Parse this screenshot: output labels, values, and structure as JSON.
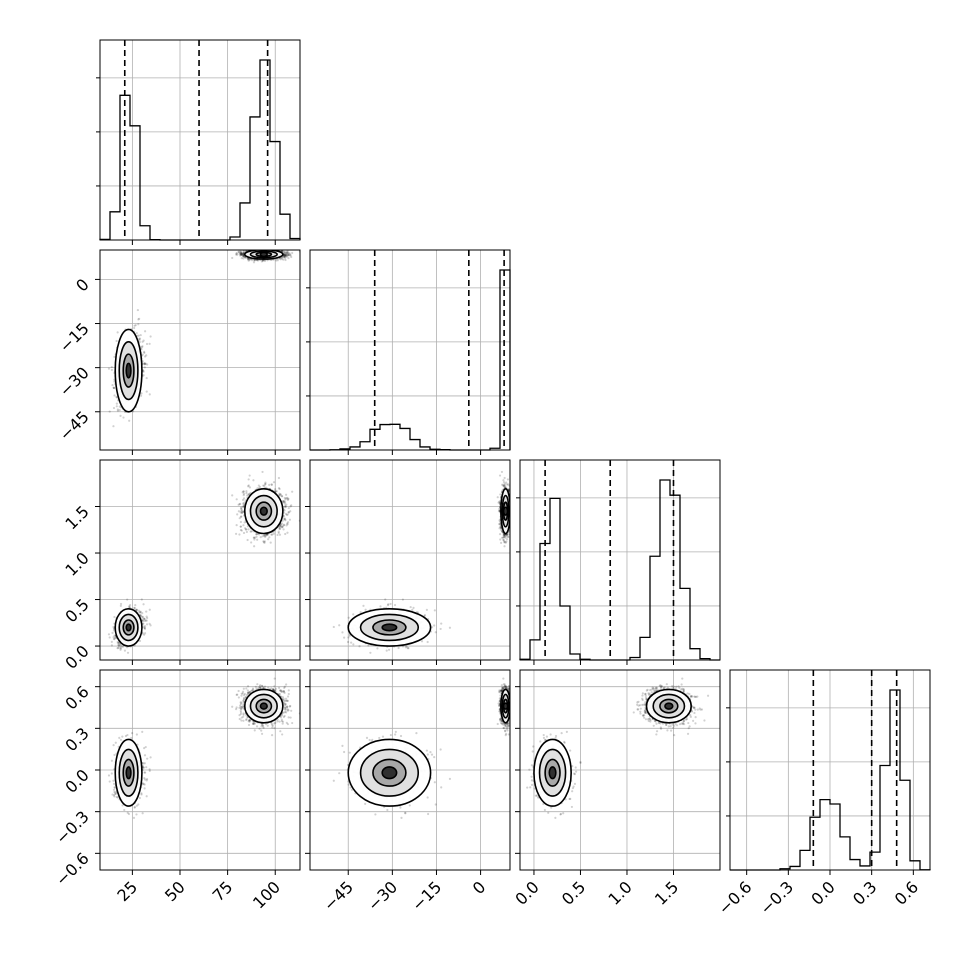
{
  "chart_data": {
    "type": "corner",
    "parameters": [
      {
        "id": "p0",
        "range": [
          8,
          113
        ],
        "ticks": [
          25,
          50,
          75,
          100
        ],
        "tick_labels": [
          "25",
          "50",
          "75",
          "100"
        ],
        "quantile_lines": [
          21,
          60,
          96
        ],
        "modes": [
          {
            "mu": 23,
            "sigma": 3.5,
            "w": 0.4
          },
          {
            "mu": 94,
            "sigma": 5,
            "w": 0.6
          }
        ]
      },
      {
        "id": "p1",
        "range": [
          -58,
          10
        ],
        "ticks": [
          -45,
          -30,
          -15,
          0
        ],
        "tick_labels": [
          "−45",
          "−30",
          "−15",
          "0"
        ],
        "quantile_lines": [
          -36,
          -4,
          8
        ],
        "modes": [
          {
            "mu": -31,
            "sigma": 7,
            "w": 0.4
          },
          {
            "mu": 8.5,
            "sigma": 0.8,
            "w": 0.6
          }
        ]
      },
      {
        "id": "p2",
        "range": [
          -0.15,
          2.0
        ],
        "ticks": [
          0.0,
          0.5,
          1.0,
          1.5
        ],
        "tick_labels": [
          "0.0",
          "0.5",
          "1.0",
          "1.5"
        ],
        "quantile_lines": [
          0.12,
          0.82,
          1.5
        ],
        "modes": [
          {
            "mu": 0.2,
            "sigma": 0.1,
            "w": 0.4
          },
          {
            "mu": 1.45,
            "sigma": 0.12,
            "w": 0.6
          }
        ]
      },
      {
        "id": "p3",
        "range": [
          -0.72,
          0.72
        ],
        "ticks": [
          -0.6,
          -0.3,
          0.0,
          0.3,
          0.6
        ],
        "tick_labels": [
          "−0.6",
          "−0.3",
          "0.0",
          "0.3",
          "0.6"
        ],
        "quantile_lines": [
          -0.12,
          0.3,
          0.48
        ],
        "modes": [
          {
            "mu": -0.02,
            "sigma": 0.12,
            "w": 0.4
          },
          {
            "mu": 0.46,
            "sigma": 0.06,
            "w": 0.6
          }
        ]
      }
    ],
    "histogram_y_ticks": 3,
    "grid": true,
    "scatter_color": "#000000",
    "contour_color": "#000000",
    "quantile_line_style": "dashed"
  }
}
